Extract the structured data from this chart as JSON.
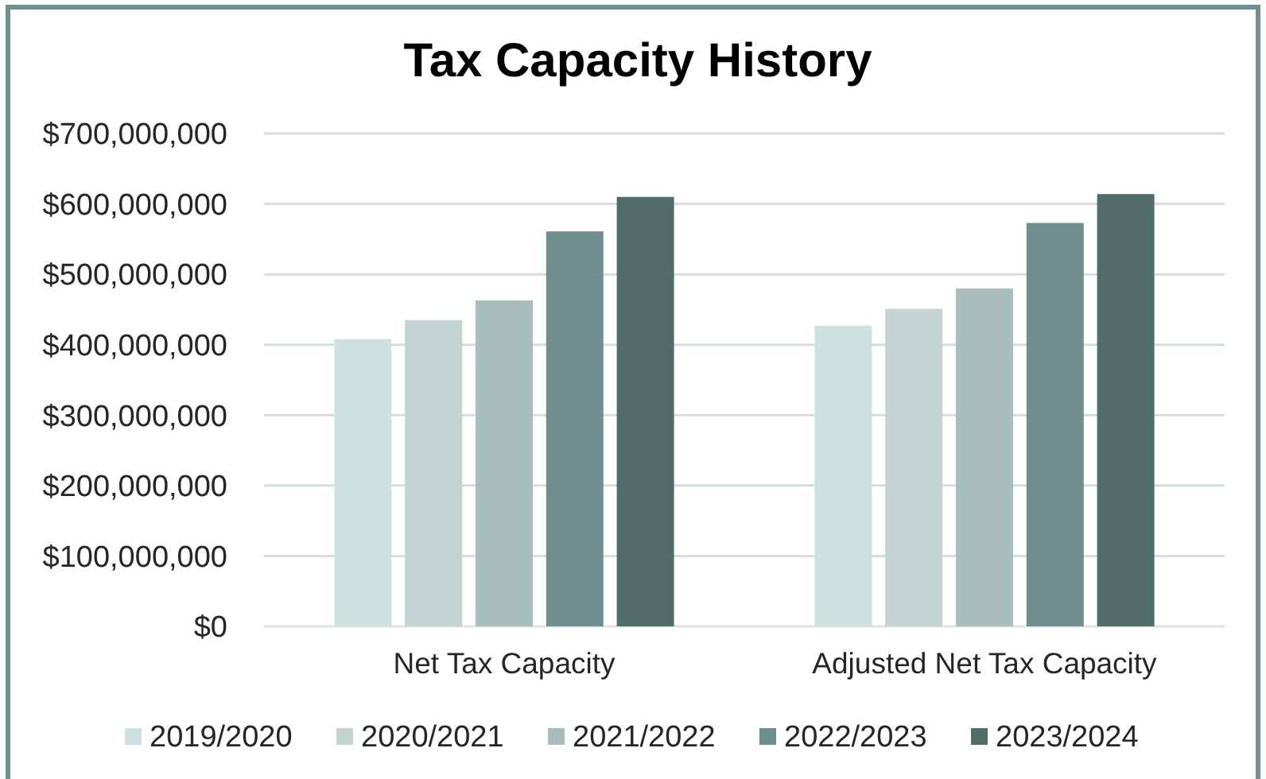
{
  "chart_data": {
    "type": "bar",
    "title": "Tax Capacity History",
    "categories": [
      "Net Tax Capacity",
      "Adjusted Net Tax Capacity"
    ],
    "series": [
      {
        "name": "2019/2020",
        "color": "#cfe0e0",
        "values": [
          408000000,
          427000000
        ]
      },
      {
        "name": "2020/2021",
        "color": "#c4d4d3",
        "values": [
          435000000,
          451000000
        ]
      },
      {
        "name": "2021/2022",
        "color": "#a9bdbc",
        "values": [
          463000000,
          480000000
        ]
      },
      {
        "name": "2022/2023",
        "color": "#6f8f8f",
        "values": [
          561000000,
          573000000
        ]
      },
      {
        "name": "2023/2024",
        "color": "#526c6a",
        "values": [
          610000000,
          614000000
        ]
      }
    ],
    "ylim": [
      0,
      700000000
    ],
    "yticks": [
      {
        "value": 0,
        "label": "$0"
      },
      {
        "value": 100000000,
        "label": "$100,000,000"
      },
      {
        "value": 200000000,
        "label": "$200,000,000"
      },
      {
        "value": 300000000,
        "label": "$300,000,000"
      },
      {
        "value": 400000000,
        "label": "$400,000,000"
      },
      {
        "value": 500000000,
        "label": "$500,000,000"
      },
      {
        "value": 600000000,
        "label": "$600,000,000"
      },
      {
        "value": 700000000,
        "label": "$700,000,000"
      }
    ],
    "grid": "y",
    "legend": "bottom"
  }
}
